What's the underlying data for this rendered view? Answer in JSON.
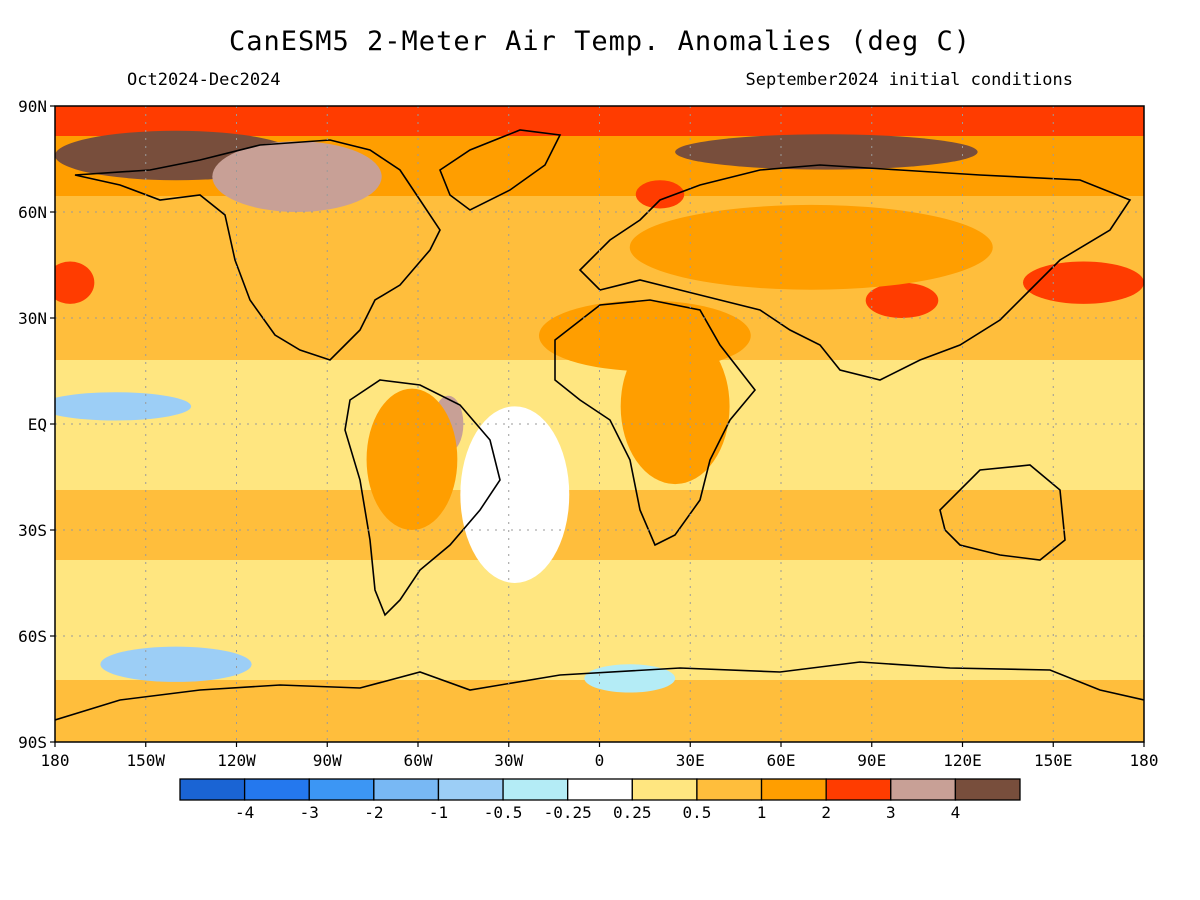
{
  "title": "CanESM5 2-Meter Air Temp. Anomalies (deg C)",
  "period": "Oct2024-Dec2024",
  "initial_conditions": "September2024 initial conditions",
  "map": {
    "lat_ticks": [
      {
        "value": 90,
        "label": "90N"
      },
      {
        "value": 60,
        "label": "60N"
      },
      {
        "value": 30,
        "label": "30N"
      },
      {
        "value": 0,
        "label": "EQ"
      },
      {
        "value": -30,
        "label": "30S"
      },
      {
        "value": -60,
        "label": "60S"
      },
      {
        "value": -90,
        "label": "90S"
      }
    ],
    "lon_ticks": [
      {
        "value": -180,
        "label": "180"
      },
      {
        "value": -150,
        "label": "150W"
      },
      {
        "value": -120,
        "label": "120W"
      },
      {
        "value": -90,
        "label": "90W"
      },
      {
        "value": -60,
        "label": "60W"
      },
      {
        "value": -30,
        "label": "30W"
      },
      {
        "value": 0,
        "label": "0"
      },
      {
        "value": 30,
        "label": "30E"
      },
      {
        "value": 60,
        "label": "60E"
      },
      {
        "value": 90,
        "label": "90E"
      },
      {
        "value": 120,
        "label": "120E"
      },
      {
        "value": 150,
        "label": "150E"
      },
      {
        "value": 180,
        "label": "180"
      }
    ]
  },
  "legend": {
    "labels": [
      "-4",
      "-3",
      "-2",
      "-1",
      "-0.5",
      "-0.25",
      "0.25",
      "0.5",
      "1",
      "2",
      "3",
      "4"
    ],
    "colors": [
      "#1a64d4",
      "#2478ee",
      "#3c96f4",
      "#78b8f4",
      "#9ccef6",
      "#b4ecf6",
      "#ffffff",
      "#ffe680",
      "#ffbe3c",
      "#ff9e00",
      "#ff3c00",
      "#c8a096",
      "#784e3c"
    ]
  },
  "regions": [
    {
      "lon": -140,
      "lat": 76,
      "rx": 40,
      "ry": 7,
      "value": 4
    },
    {
      "lon": -100,
      "lat": 70,
      "rx": 28,
      "ry": 10,
      "value": 3.5
    },
    {
      "lon": 75,
      "lat": 77,
      "rx": 50,
      "ry": 5,
      "value": 4
    },
    {
      "lon": 20,
      "lat": 65,
      "rx": 8,
      "ry": 4,
      "value": 2.5
    },
    {
      "lon": 100,
      "lat": 35,
      "rx": 12,
      "ry": 5,
      "value": 2.5
    },
    {
      "lon": 160,
      "lat": 40,
      "rx": 20,
      "ry": 6,
      "value": 2.5
    },
    {
      "lon": -175,
      "lat": 40,
      "rx": 8,
      "ry": 6,
      "value": 2.5
    },
    {
      "lon": -50,
      "lat": 0,
      "rx": 5,
      "ry": 8,
      "value": 3
    },
    {
      "lon": -62,
      "lat": -10,
      "rx": 15,
      "ry": 20,
      "value": 1.5
    },
    {
      "lon": 25,
      "lat": 5,
      "rx": 18,
      "ry": 22,
      "value": 1.5
    },
    {
      "lon": 15,
      "lat": 25,
      "rx": 35,
      "ry": 10,
      "value": 1.5
    },
    {
      "lon": 70,
      "lat": 50,
      "rx": 60,
      "ry": 12,
      "value": 1.5
    },
    {
      "lon": -160,
      "lat": 5,
      "rx": 25,
      "ry": 4,
      "value": -0.75
    },
    {
      "lon": -140,
      "lat": -68,
      "rx": 25,
      "ry": 5,
      "value": -0.75
    },
    {
      "lon": 10,
      "lat": -72,
      "rx": 15,
      "ry": 4,
      "value": -0.4
    },
    {
      "lon": -28,
      "lat": -20,
      "rx": 18,
      "ry": 25,
      "value": 0
    }
  ]
}
